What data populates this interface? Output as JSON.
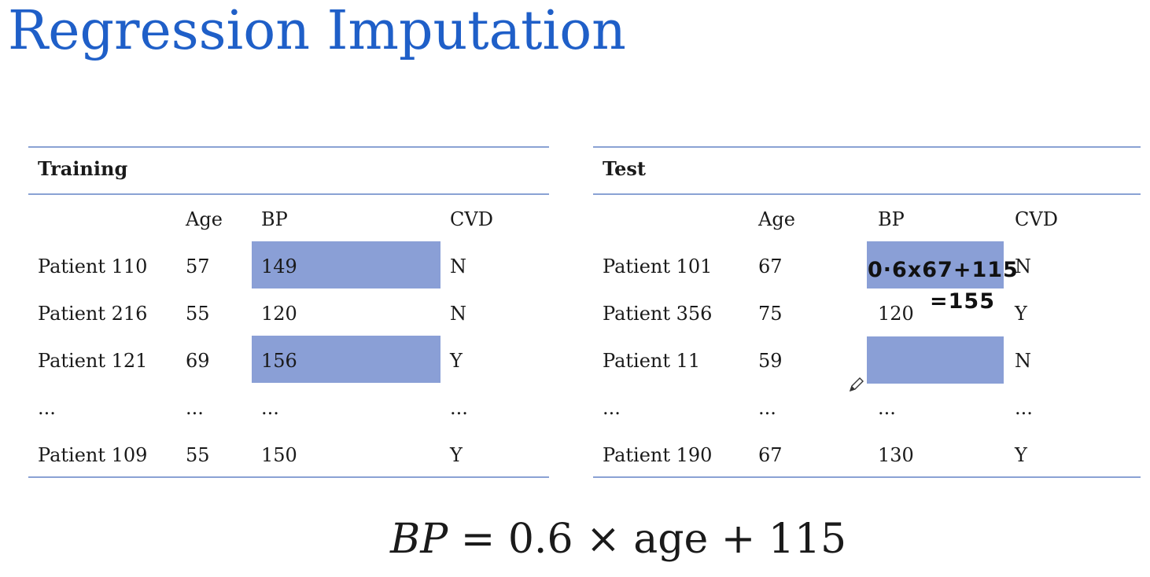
{
  "slide": {
    "title": "Regression Imputation"
  },
  "training": {
    "label": "Training",
    "columns": [
      "Age",
      "BP",
      "CVD"
    ],
    "rows": [
      {
        "patient": "Patient 110",
        "age": "57",
        "bp": "149",
        "cvd": "N"
      },
      {
        "patient": "Patient 216",
        "age": "55",
        "bp": "120",
        "cvd": "N"
      },
      {
        "patient": "Patient 121",
        "age": "69",
        "bp": "156",
        "cvd": "Y"
      },
      {
        "patient": "...",
        "age": "...",
        "bp": "...",
        "cvd": "..."
      },
      {
        "patient": "Patient 109",
        "age": "55",
        "bp": "150",
        "cvd": "Y"
      }
    ]
  },
  "test": {
    "label": "Test",
    "columns": [
      "Age",
      "BP",
      "CVD"
    ],
    "rows": [
      {
        "patient": "Patient 101",
        "age": "67",
        "bp": "",
        "cvd": "N"
      },
      {
        "patient": "Patient 356",
        "age": "75",
        "bp": "120",
        "cvd": "Y"
      },
      {
        "patient": "Patient 11",
        "age": "59",
        "bp": "",
        "cvd": "N"
      },
      {
        "patient": "...",
        "age": "...",
        "bp": "...",
        "cvd": "..."
      },
      {
        "patient": "Patient 190",
        "age": "67",
        "bp": "130",
        "cvd": "Y"
      }
    ]
  },
  "annotations": {
    "line1": "0·6x67+115",
    "line2": "=155"
  },
  "formula": {
    "lhs": "BP",
    "eq": "=",
    "coef": "0.6",
    "times": "×",
    "var": "age",
    "plus": "+",
    "const": "115"
  },
  "colors": {
    "title": "#1f5fc8",
    "highlight": "#8a9fd6",
    "rule": "#8aa2d4"
  }
}
